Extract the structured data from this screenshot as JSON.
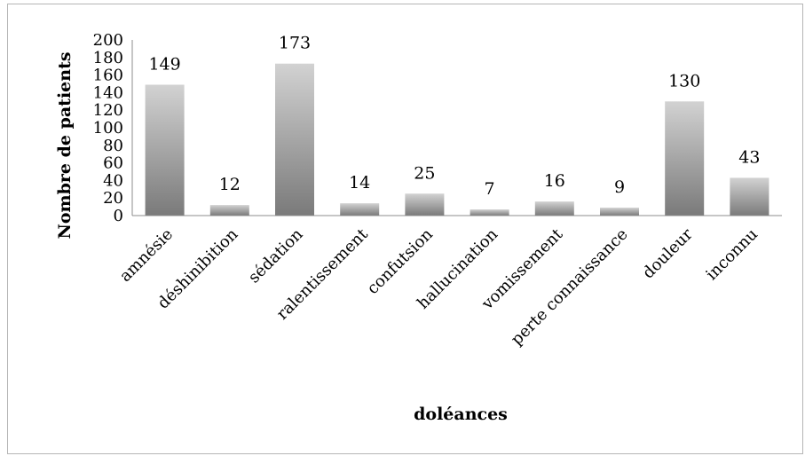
{
  "chart_data": {
    "type": "bar",
    "title": "",
    "xlabel": "doléances",
    "ylabel": "Nombre de patients",
    "ylim": [
      0,
      200
    ],
    "y_ticks": [
      0,
      20,
      40,
      60,
      80,
      100,
      120,
      140,
      160,
      180,
      200
    ],
    "grid": false,
    "legend": "none",
    "categories": [
      "amnésie",
      "déshinibition",
      "sédation",
      "ralentissement",
      "confutsion",
      "hallucination",
      "vomissement",
      "perte connaissance",
      "douleur",
      "inconnu"
    ],
    "values": [
      149,
      12,
      173,
      14,
      25,
      7,
      16,
      9,
      130,
      43
    ],
    "colors": {
      "bar_top": "#d2d2d2",
      "bar_bottom": "#7a7a7a",
      "axis": "#8c8c8c",
      "frame": "#b5b5b5"
    }
  }
}
